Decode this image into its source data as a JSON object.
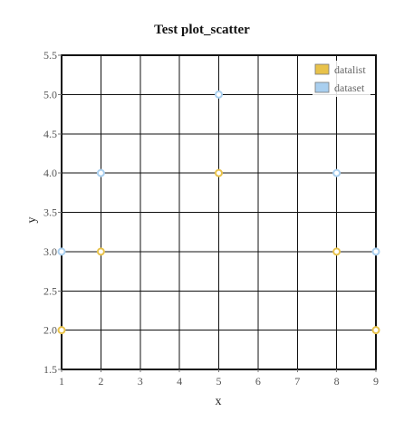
{
  "chart_data": {
    "type": "scatter",
    "title": "Test plot_scatter",
    "xlabel": "x",
    "ylabel": "y",
    "xlim": [
      1,
      9
    ],
    "ylim": [
      1.5,
      5.5
    ],
    "xticks": [
      1,
      2,
      3,
      4,
      5,
      6,
      7,
      8,
      9
    ],
    "yticks": [
      1.5,
      2.0,
      2.5,
      3.0,
      3.5,
      4.0,
      4.5,
      5.0,
      5.5
    ],
    "grid": true,
    "legend_position": "top-right",
    "series": [
      {
        "name": "datalist",
        "color": "#e8c24a",
        "fill": "#ffffff",
        "points": [
          {
            "x": 1,
            "y": 2
          },
          {
            "x": 2,
            "y": 3
          },
          {
            "x": 5,
            "y": 4
          },
          {
            "x": 8,
            "y": 3
          },
          {
            "x": 9,
            "y": 2
          }
        ]
      },
      {
        "name": "dataset",
        "color": "#a9cfef",
        "fill": "#ffffff",
        "points": [
          {
            "x": 1,
            "y": 3
          },
          {
            "x": 2,
            "y": 4
          },
          {
            "x": 5,
            "y": 5
          },
          {
            "x": 8,
            "y": 4
          },
          {
            "x": 9,
            "y": 3
          }
        ]
      }
    ]
  }
}
